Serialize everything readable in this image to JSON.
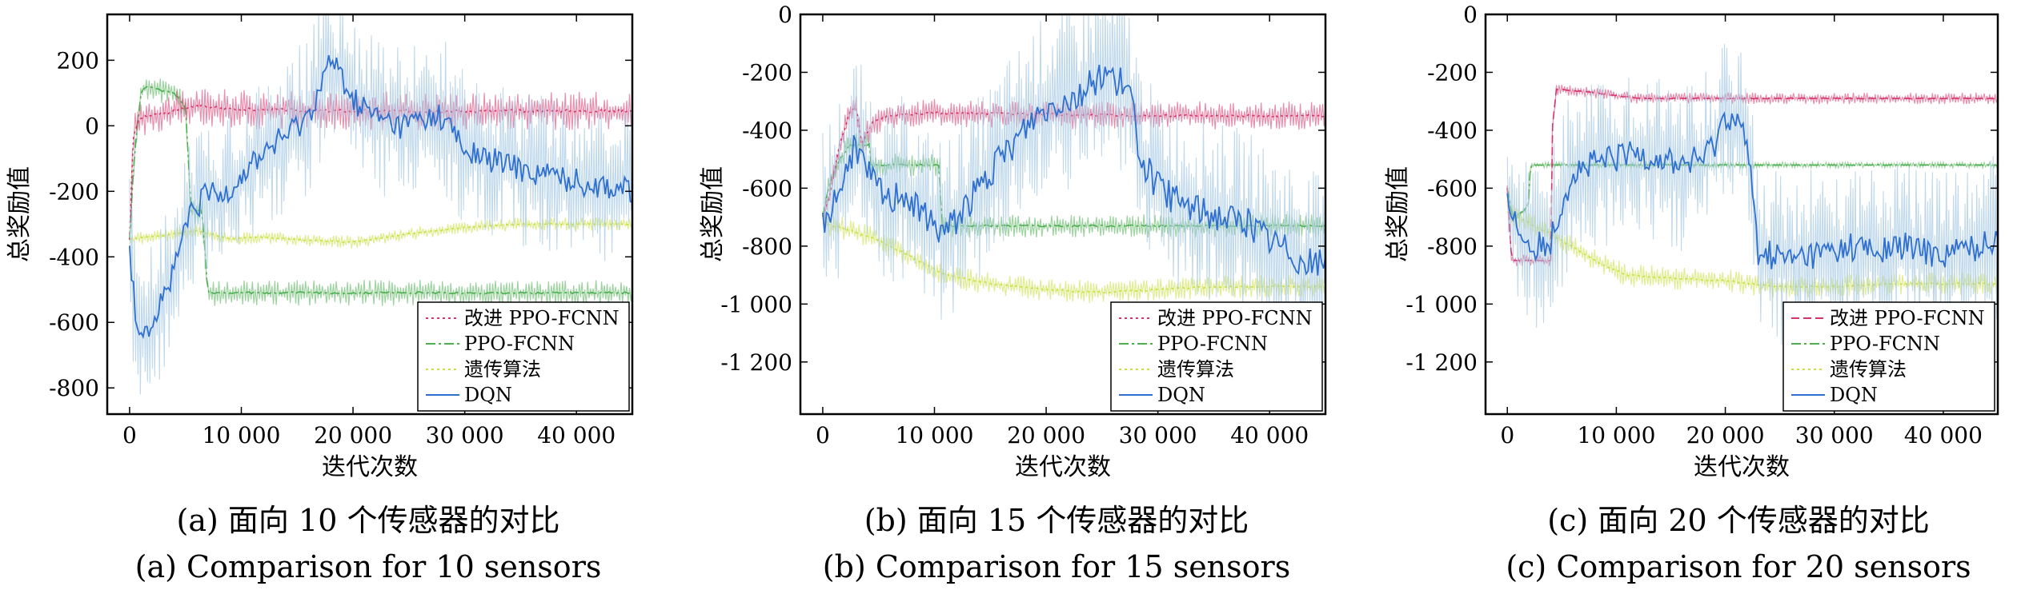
{
  "chart_data": [
    {
      "type": "line",
      "panel": "a",
      "ylabel": "总奖励值",
      "xlabel": "迭代次数",
      "caption_cn": "(a) 面向 10 个传感器的对比",
      "caption_en": "(a) Comparison for 10 sensors",
      "xlim": [
        -2000,
        45000
      ],
      "ylim": [
        -880,
        340
      ],
      "xticks": [
        0,
        10000,
        20000,
        30000,
        40000
      ],
      "xtick_labels": [
        "0",
        "10 000",
        "20 000",
        "30 000",
        "40 000"
      ],
      "yticks": [
        200,
        0,
        -200,
        -400,
        -600,
        -800
      ],
      "ytick_labels": [
        "200",
        "0",
        "-200",
        "-400",
        "-600",
        "-800"
      ],
      "legend_position": "lower-right",
      "series": [
        {
          "name": "改进 PPO-FCNN",
          "color": "#d6336c",
          "style": "dotted",
          "x": [
            0,
            300,
            800,
            1500,
            2500,
            4000,
            6000,
            10000,
            20000,
            30000,
            40000,
            45000
          ],
          "y": [
            -350,
            -40,
            20,
            30,
            35,
            45,
            60,
            50,
            45,
            45,
            45,
            45
          ],
          "band": 30
        },
        {
          "name": "PPO-FCNN",
          "color": "#4caf50",
          "style": "dashdot",
          "x": [
            0,
            400,
            1000,
            1500,
            2500,
            4000,
            5000,
            5500,
            6500,
            7000,
            45000
          ],
          "y": [
            -350,
            -100,
            100,
            120,
            110,
            100,
            60,
            -260,
            -260,
            -510,
            -510
          ],
          "band": 20
        },
        {
          "name": "遗传算法",
          "color": "#c9df3a",
          "style": "dotted",
          "x": [
            0,
            3000,
            6000,
            9000,
            12000,
            16000,
            20000,
            25000,
            30000,
            35000,
            40000,
            45000
          ],
          "y": [
            -345,
            -335,
            -320,
            -345,
            -340,
            -350,
            -355,
            -330,
            -310,
            -300,
            -300,
            -300
          ],
          "band": 10
        },
        {
          "name": "DQN",
          "color": "#2f6fcf",
          "style": "solid",
          "x": [
            0,
            500,
            1000,
            2000,
            3000,
            4000,
            5000,
            6000,
            7000,
            8000,
            10000,
            12000,
            14000,
            16000,
            17000,
            18000,
            19000,
            20000,
            22000,
            24000,
            26000,
            28000,
            29000,
            30000,
            32000,
            34000,
            36000,
            38000,
            40000,
            42000,
            44000,
            45000
          ],
          "y": [
            -350,
            -580,
            -610,
            -600,
            -520,
            -450,
            -300,
            -250,
            -200,
            -220,
            -150,
            -80,
            -30,
            30,
            120,
            200,
            150,
            80,
            30,
            0,
            20,
            30,
            -20,
            -80,
            -100,
            -120,
            -140,
            -150,
            -170,
            -180,
            -190,
            -200
          ],
          "band": 120
        }
      ]
    },
    {
      "type": "line",
      "panel": "b",
      "ylabel": "总奖励值",
      "xlabel": "迭代次数",
      "caption_cn": "(b) 面向 15 个传感器的对比",
      "caption_en": "(b) Comparison for 15 sensors",
      "xlim": [
        -2000,
        45000
      ],
      "ylim": [
        -1380,
        0
      ],
      "xticks": [
        0,
        10000,
        20000,
        30000,
        40000
      ],
      "xtick_labels": [
        "0",
        "10 000",
        "20 000",
        "30 000",
        "40 000"
      ],
      "yticks": [
        0,
        -200,
        -400,
        -600,
        -800,
        -1000,
        -1200
      ],
      "ytick_labels": [
        "0",
        "-200",
        "-400",
        "-600",
        "-800",
        "-1 000",
        "-1 200"
      ],
      "legend_position": "lower-right",
      "series": [
        {
          "name": "改进 PPO-FCNN",
          "color": "#d6336c",
          "style": "dotted",
          "x": [
            0,
            500,
            1500,
            2500,
            3000,
            3500,
            4500,
            6000,
            10000,
            20000,
            30000,
            40000,
            45000
          ],
          "y": [
            -700,
            -650,
            -450,
            -330,
            -320,
            -450,
            -370,
            -350,
            -340,
            -345,
            -350,
            -350,
            -350
          ],
          "band": 25
        },
        {
          "name": "PPO-FCNN",
          "color": "#4caf50",
          "style": "dashdot",
          "x": [
            0,
            500,
            1500,
            2500,
            3500,
            4200,
            4300,
            10500,
            10600,
            45000
          ],
          "y": [
            -700,
            -600,
            -500,
            -450,
            -450,
            -450,
            -520,
            -520,
            -730,
            -730
          ],
          "band": 20
        },
        {
          "name": "遗传算法",
          "color": "#c9df3a",
          "style": "dotted",
          "x": [
            0,
            2000,
            5000,
            8000,
            11000,
            15000,
            20000,
            25000,
            30000,
            35000,
            40000,
            45000
          ],
          "y": [
            -720,
            -740,
            -780,
            -840,
            -900,
            -930,
            -950,
            -960,
            -950,
            -940,
            -940,
            -940
          ],
          "band": 20
        },
        {
          "name": "DQN",
          "color": "#2f6fcf",
          "style": "solid",
          "x": [
            0,
            500,
            1500,
            3000,
            4000,
            5000,
            6000,
            7000,
            9000,
            11000,
            13000,
            15000,
            17000,
            19000,
            21000,
            23000,
            25000,
            26500,
            27500,
            28500,
            30000,
            32000,
            34000,
            36000,
            38000,
            40000,
            42000,
            43000,
            45000
          ],
          "y": [
            -720,
            -680,
            -600,
            -450,
            -550,
            -600,
            -650,
            -600,
            -700,
            -750,
            -650,
            -550,
            -450,
            -350,
            -300,
            -280,
            -200,
            -230,
            -280,
            -500,
            -600,
            -650,
            -680,
            -700,
            -720,
            -780,
            -820,
            -860,
            -860
          ],
          "band": 160
        }
      ]
    },
    {
      "type": "line",
      "panel": "c",
      "ylabel": "总奖励值",
      "xlabel": "迭代次数",
      "caption_cn": "(c) 面向 20 个传感器的对比",
      "caption_en": "(c) Comparison for 20 sensors",
      "xlim": [
        -2000,
        45000
      ],
      "ylim": [
        -1380,
        0
      ],
      "xticks": [
        0,
        10000,
        20000,
        30000,
        40000
      ],
      "xtick_labels": [
        "0",
        "10 000",
        "20 000",
        "30 000",
        "40 000"
      ],
      "yticks": [
        0,
        -200,
        -400,
        -600,
        -800,
        -1000,
        -1200
      ],
      "ytick_labels": [
        "0",
        "-200",
        "-400",
        "-600",
        "-800",
        "-1 000",
        "-1 200"
      ],
      "legend_position": "lower-right",
      "series": [
        {
          "name": "改进 PPO-FCNN",
          "color": "#d6336c",
          "style": "dashed",
          "x": [
            0,
            400,
            1200,
            4000,
            4100,
            4500,
            5000,
            8000,
            10000,
            12000,
            20000,
            30000,
            45000
          ],
          "y": [
            -600,
            -850,
            -850,
            -850,
            -400,
            -260,
            -260,
            -270,
            -280,
            -290,
            -290,
            -290,
            -290
          ],
          "band": 10
        },
        {
          "name": "PPO-FCNN",
          "color": "#4caf50",
          "style": "dashdot",
          "x": [
            0,
            500,
            1500,
            2000,
            2100,
            45000
          ],
          "y": [
            -600,
            -700,
            -680,
            -650,
            -520,
            -520
          ],
          "band": 5
        },
        {
          "name": "遗传算法",
          "color": "#c9df3a",
          "style": "dotted",
          "x": [
            0,
            2000,
            5000,
            8000,
            11000,
            15000,
            20000,
            25000,
            30000,
            35000,
            40000,
            45000
          ],
          "y": [
            -680,
            -720,
            -780,
            -850,
            -900,
            -910,
            -920,
            -940,
            -940,
            -930,
            -930,
            -930
          ],
          "band": 20
        },
        {
          "name": "DQN",
          "color": "#2f6fcf",
          "style": "solid",
          "x": [
            0,
            500,
            1500,
            3000,
            4000,
            5000,
            6000,
            8000,
            10000,
            12000,
            14000,
            16000,
            18000,
            19000,
            20000,
            21000,
            22000,
            23000,
            24000,
            26000,
            28000,
            30000,
            32000,
            34000,
            36000,
            38000,
            40000,
            42000,
            44000,
            45000
          ],
          "y": [
            -600,
            -700,
            -780,
            -800,
            -780,
            -650,
            -550,
            -520,
            -500,
            -480,
            -500,
            -520,
            -500,
            -450,
            -350,
            -360,
            -450,
            -820,
            -830,
            -850,
            -830,
            -820,
            -800,
            -830,
            -800,
            -820,
            -830,
            -810,
            -800,
            -750
          ],
          "band": 150
        }
      ]
    }
  ]
}
